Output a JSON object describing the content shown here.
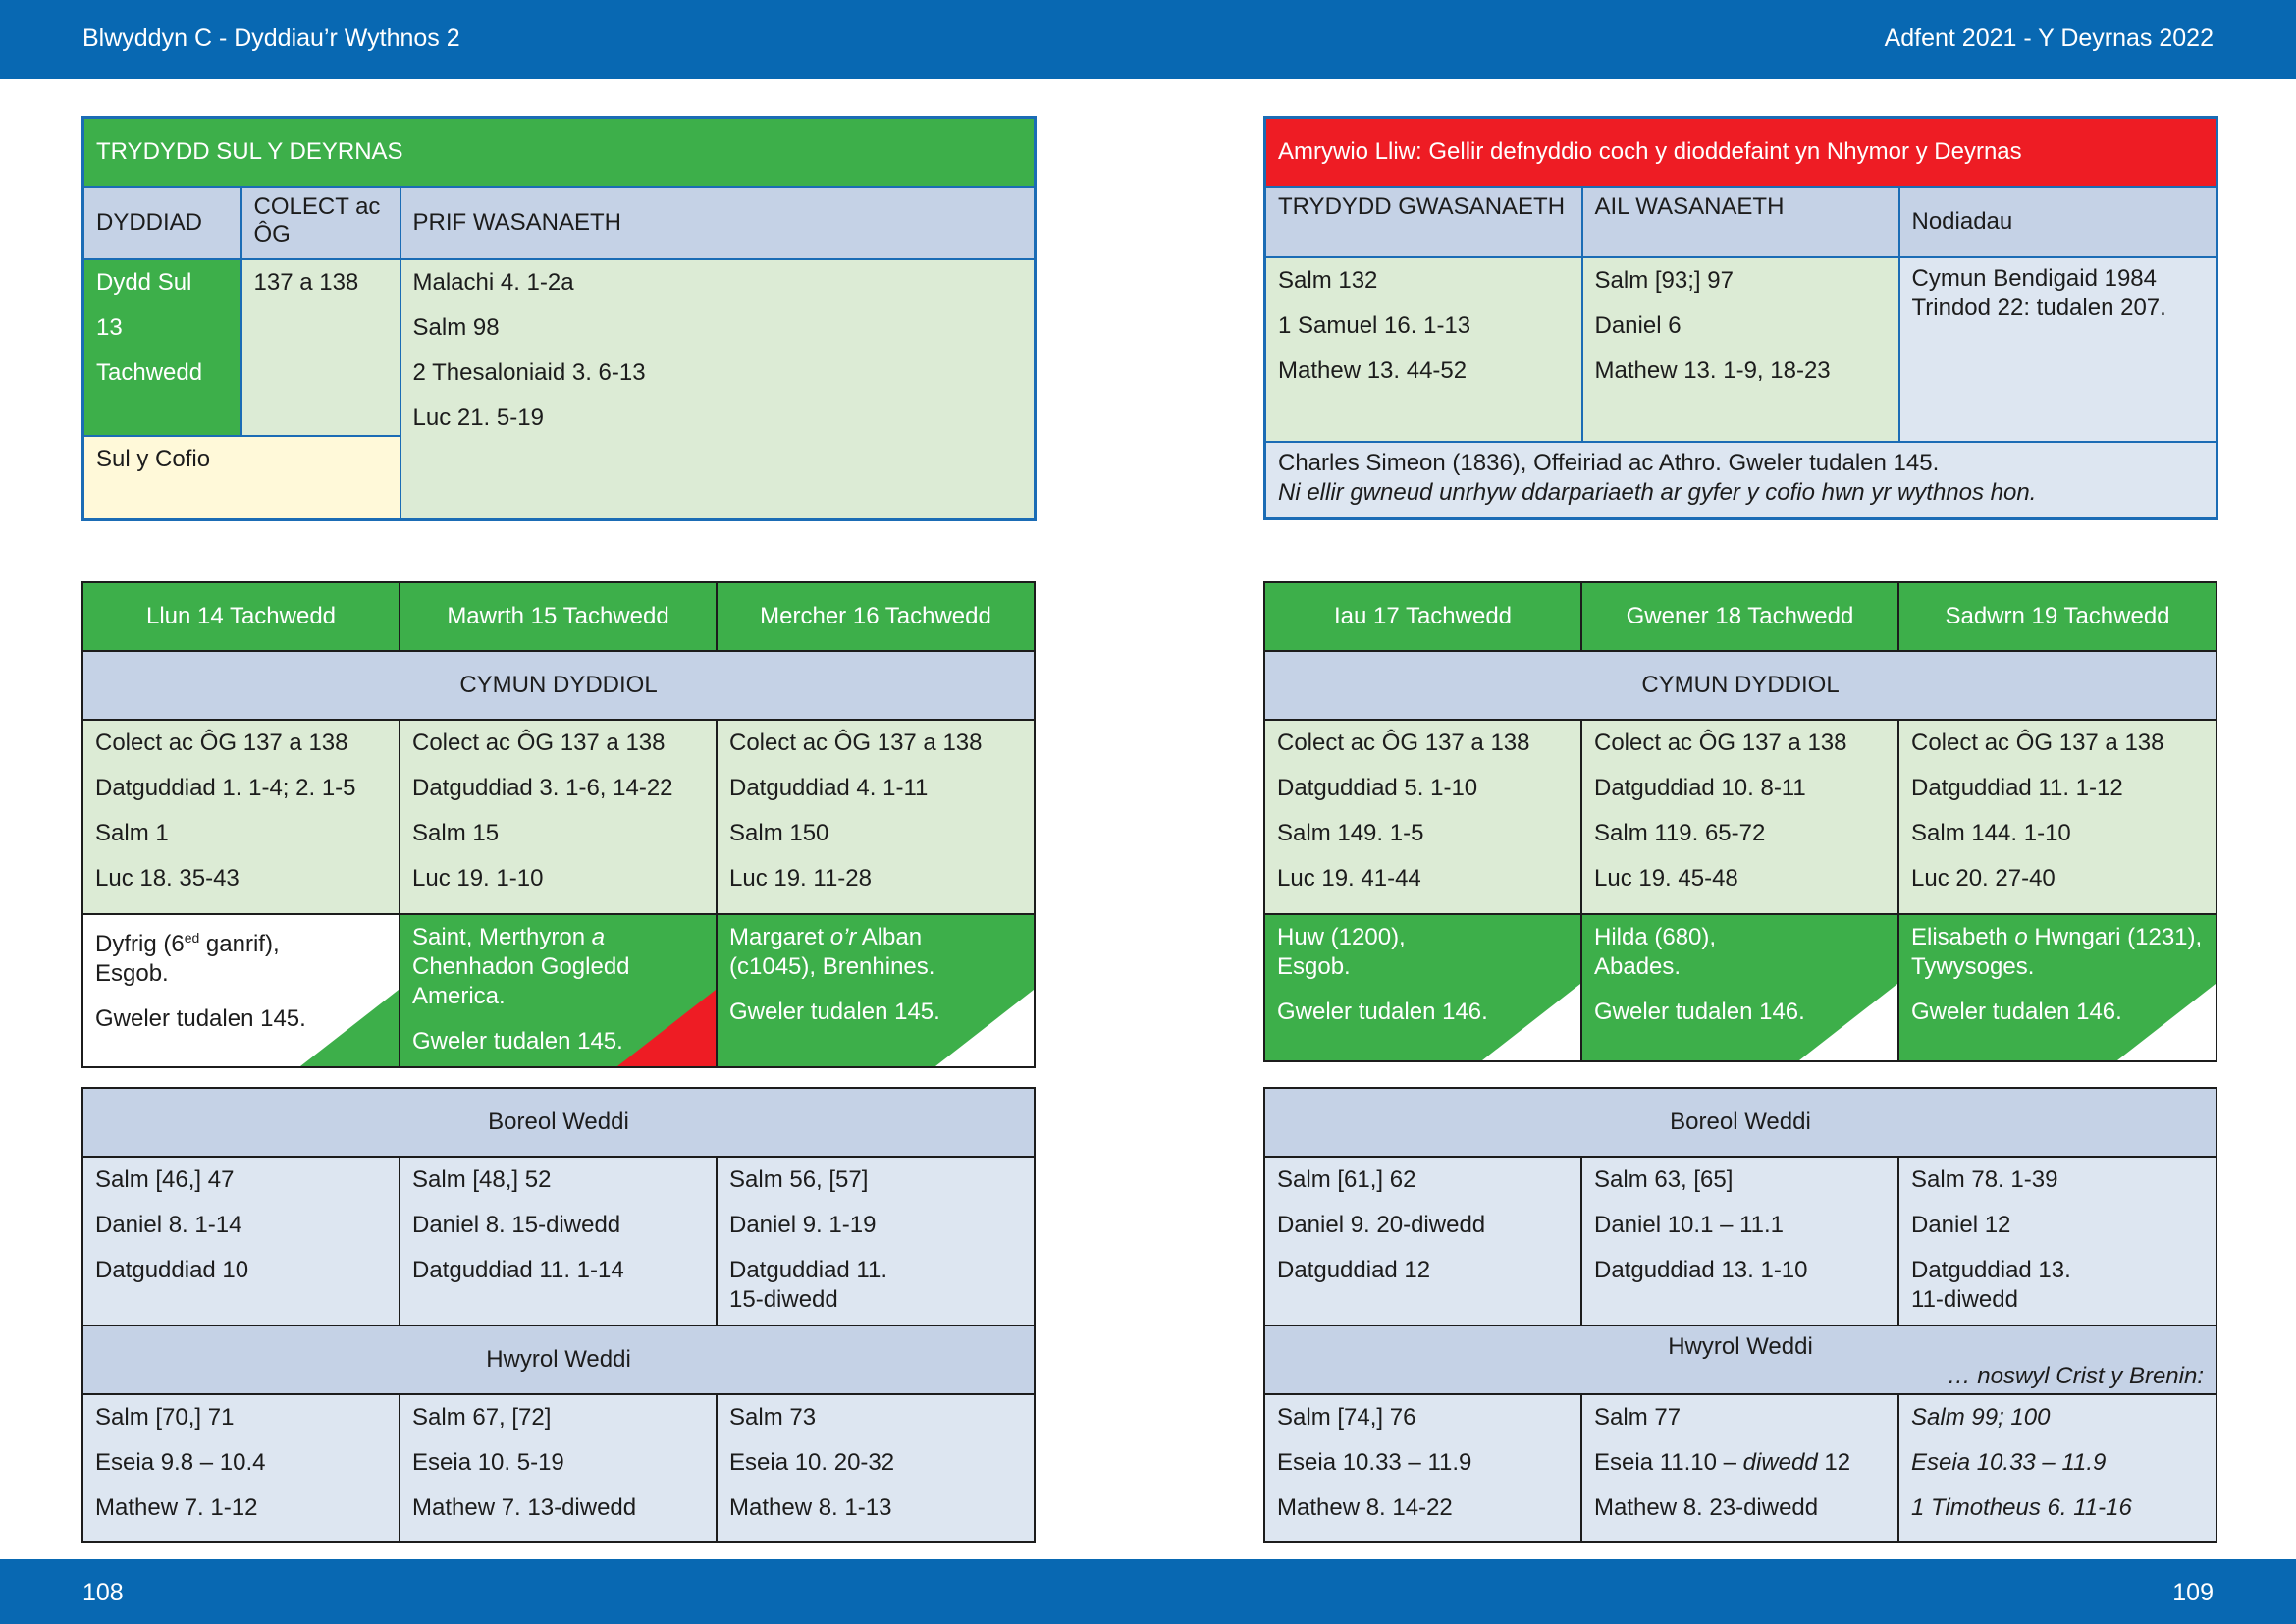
{
  "header": {
    "left": "Blwyddyn  C - Dyddiau’r Wythnos 2",
    "right": "Adfent 2021 - Y Deyrnas 2022"
  },
  "footer": {
    "left_page": "108",
    "right_page": "109"
  },
  "sunday": {
    "title": "TRYDYDD SUL Y DEYRNAS",
    "col_date": "DYDDIAD",
    "col_collect": "COLECT ac ÔG",
    "col_main": "PRIF WASANAETH",
    "date_lines": [
      "Dydd Sul",
      "13",
      "Tachwedd"
    ],
    "collect": "137 a 138",
    "readings": [
      "Malachi 4. 1-2a",
      "Salm 98",
      "2 Thesaloniaid 3. 6-13",
      "Luc 21. 5-19"
    ],
    "note": "Sul y Cofio"
  },
  "sunday_right": {
    "banner": "Amrywio Lliw: Gellir defnyddio coch y dioddefaint yn Nhymor y Deyrnas",
    "col_third": "TRYDYDD GWASANAETH",
    "col_second": "AIL WASANAETH",
    "col_notes": "Nodiadau",
    "third": [
      "Salm 132",
      "1 Samuel 16. 1-13",
      "Mathew 13. 44-52"
    ],
    "second": [
      "Salm [93;] 97",
      "Daniel 6",
      "Mathew 13. 1-9, 18-23"
    ],
    "notes": [
      "Cymun Bendigaid 1984",
      "Trindod 22: tudalen 207."
    ],
    "footer_line": "Charles Simeon (1836), Offeiriad ac Athro. Gweler tudalen 145.",
    "footer_italic": "Ni ellir gwneud unrhyw ddarpariaeth ar gyfer y cofio hwn yr wythnos hon."
  },
  "weekdays_left": {
    "days": [
      "Llun 14 Tachwedd",
      "Mawrth 15 Tachwedd",
      "Mercher 16 Tachwedd"
    ],
    "cymun_label": "CYMUN DYDDIOL",
    "cymun": [
      [
        "Colect ac ÔG 137 a 138",
        "Datguddiad 1. 1-4; 2. 1-5",
        "Salm 1",
        "Luc 18. 35-43"
      ],
      [
        "Colect ac ÔG 137 a 138",
        "Datguddiad 3. 1-6, 14-22",
        "Salm 15",
        "Luc 19. 1-10"
      ],
      [
        "Colect ac ÔG 137 a 138",
        "Datguddiad 4. 1-11",
        "Salm 150",
        "Luc 19. 11-28"
      ]
    ],
    "commem": [
      {
        "pre": "Dyfrig (6",
        "sup": "ed",
        "post": " ganrif),",
        "line2": "Esgob.",
        "see": "Gweler tudalen 145."
      },
      {
        "pre": "Saint, Merthyron ",
        "it": "a",
        "line2": "Chenhadon Gogledd",
        "line3": "America.",
        "see": "Gweler tudalen 145."
      },
      {
        "pre": "Margaret ",
        "it": "o’r",
        "post": " Alban",
        "line2": "(c1045), Brenhines.",
        "see": "Gweler tudalen 145."
      }
    ],
    "morning_label": "Boreol Weddi",
    "morning": [
      [
        "Salm [46,] 47",
        "Daniel 8. 1-14",
        "Datguddiad 10"
      ],
      [
        "Salm [48,] 52",
        "Daniel 8. 15-diwedd",
        "Datguddiad 11. 1-14"
      ],
      [
        "Salm 56, [57]",
        "Daniel 9. 1-19",
        "Datguddiad 11.",
        "15-diwedd"
      ]
    ],
    "evening_label": "Hwyrol Weddi",
    "evening": [
      [
        "Salm [70,] 71",
        "Eseia 9.8 – 10.4",
        "Mathew 7. 1-12"
      ],
      [
        "Salm 67, [72]",
        "Eseia 10. 5-19",
        "Mathew 7. 13-diwedd"
      ],
      [
        "Salm 73",
        "Eseia 10. 20-32",
        "Mathew 8. 1-13"
      ]
    ]
  },
  "weekdays_right": {
    "days": [
      "Iau 17 Tachwedd",
      "Gwener 18 Tachwedd",
      "Sadwrn 19 Tachwedd"
    ],
    "cymun_label": "CYMUN DYDDIOL",
    "cymun": [
      [
        "Colect ac ÔG 137 a 138",
        "Datguddiad 5. 1-10",
        "Salm 149. 1-5",
        "Luc 19. 41-44"
      ],
      [
        "Colect ac ÔG 137 a 138",
        "Datguddiad 10. 8-11",
        "Salm 119. 65-72",
        "Luc 19. 45-48"
      ],
      [
        "Colect ac ÔG 137 a 138",
        "Datguddiad 11. 1-12",
        "Salm 144. 1-10",
        "Luc 20. 27-40"
      ]
    ],
    "commem": [
      {
        "pre": "Huw (1200),",
        "line2": "Esgob.",
        "see": "Gweler tudalen 146."
      },
      {
        "pre": "Hilda (680),",
        "line2": "Abades.",
        "see": "Gweler tudalen 146."
      },
      {
        "pre": "Elisabeth ",
        "it": "o",
        "post": " Hwngari (1231),",
        "line2": "Tywysoges.",
        "see": "Gweler tudalen 146."
      }
    ],
    "morning_label": "Boreol Weddi",
    "morning": [
      [
        "Salm [61,] 62",
        "Daniel 9. 20-diwedd",
        "Datguddiad 12"
      ],
      [
        "Salm 63, [65]",
        "Daniel 10.1 – 11.1",
        "Datguddiad 13. 1-10"
      ],
      [
        "Salm 78. 1-39",
        "Daniel 12",
        "Datguddiad 13.",
        "11-diwedd"
      ]
    ],
    "evening_label": "Hwyrol Weddi",
    "evening_note": "… noswyl Crist y Brenin:",
    "evening": [
      [
        "Salm [74,] 76",
        "Eseia 10.33 – 11.9",
        "Mathew 8. 14-22"
      ],
      [
        "Salm 77",
        "Eseia 11.10 – ",
        "diwedd",
        " 12",
        "Mathew 8. 23-diwedd"
      ],
      [
        "Salm 99; 100",
        "Eseia 10.33 – 11.9",
        "1 Timotheus 6. 11-16"
      ]
    ]
  }
}
